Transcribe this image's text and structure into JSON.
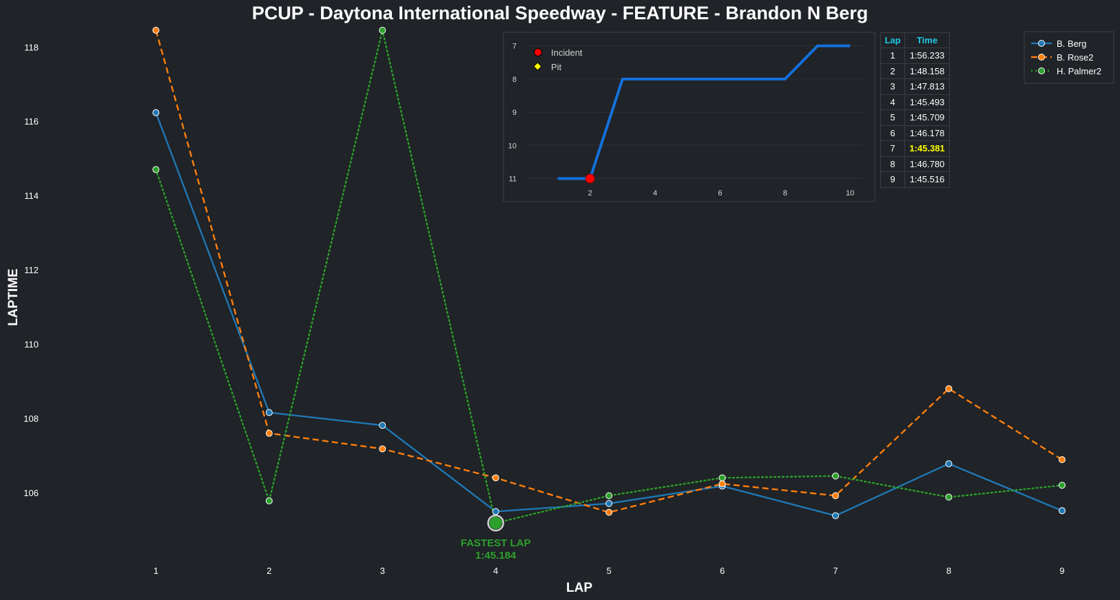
{
  "title": "PCUP - Daytona International Speedway - FEATURE - Brandon N Berg",
  "chart_data": [
    {
      "type": "line",
      "title": "PCUP - Daytona International Speedway - FEATURE - Brandon N Berg",
      "xlabel": "LAP",
      "ylabel": "LAPTIME",
      "x": [
        1,
        2,
        3,
        4,
        5,
        6,
        7,
        8,
        9
      ],
      "xlim": [
        0.25,
        9.25
      ],
      "ylim": [
        104.0,
        118.45
      ],
      "yticks": [
        106,
        108,
        110,
        112,
        114,
        116,
        118
      ],
      "grid": false,
      "legend_position": "top-right",
      "series": [
        {
          "name": "B. Berg",
          "color": "#1f77b4",
          "dash": "solid",
          "values": [
            116.233,
            108.158,
            107.813,
            105.493,
            105.709,
            106.178,
            105.381,
            106.78,
            105.516
          ]
        },
        {
          "name": "B. Rose2",
          "color": "#ff7f0e",
          "dash": "dashed",
          "values": [
            118.45,
            107.6,
            107.18,
            106.4,
            105.47,
            106.24,
            105.92,
            108.8,
            106.89
          ]
        },
        {
          "name": "H. Palmer2",
          "color": "#2ca02c",
          "dash": "dotted",
          "values": [
            114.7,
            105.78,
            118.45,
            105.184,
            105.92,
            106.4,
            106.45,
            105.88,
            106.2
          ]
        }
      ],
      "annotation": {
        "label": "FASTEST LAP",
        "time": "1:45.184",
        "x": 4,
        "y": 105.184,
        "color": "#2ca02c"
      }
    },
    {
      "type": "line",
      "title": "",
      "xlabel": "",
      "ylabel": "",
      "x": [
        1,
        2,
        3,
        4,
        5,
        6,
        7,
        8,
        9,
        10
      ],
      "values": [
        11,
        11,
        8,
        8,
        8,
        8,
        8,
        8,
        7,
        7
      ],
      "xlim": [
        0.1,
        10.4
      ],
      "ylim": [
        11.3,
        6.8
      ],
      "xticks": [
        2,
        4,
        6,
        8,
        10
      ],
      "yticks": [
        7,
        8,
        9,
        10,
        11
      ],
      "y_inverted": true,
      "grid": true,
      "line_color": "#1470dc",
      "legend_position": "top-left",
      "legend": [
        {
          "label": "Incident",
          "marker": "circle",
          "color": "#ff0000"
        },
        {
          "label": "Pit",
          "marker": "diamond",
          "color": "#ffff00"
        }
      ],
      "incidents": [
        {
          "x": 2,
          "y": 11
        }
      ],
      "pits": []
    }
  ],
  "lap_table": {
    "headers": [
      "Lap",
      "Time"
    ],
    "best_lap": 7,
    "rows": [
      [
        "1",
        "1:56.233"
      ],
      [
        "2",
        "1:48.158"
      ],
      [
        "3",
        "1:47.813"
      ],
      [
        "4",
        "1:45.493"
      ],
      [
        "5",
        "1:45.709"
      ],
      [
        "6",
        "1:46.178"
      ],
      [
        "7",
        "1:45.381"
      ],
      [
        "8",
        "1:46.780"
      ],
      [
        "9",
        "1:45.516"
      ]
    ]
  }
}
